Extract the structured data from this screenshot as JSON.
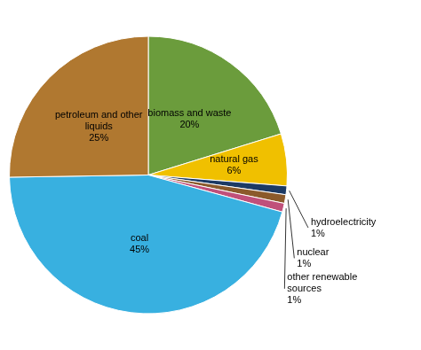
{
  "chart_data": {
    "type": "pie",
    "categories": [
      "biomass and waste",
      "natural gas",
      "hydroelectricity",
      "nuclear",
      "other renewable\nsources",
      "coal",
      "petroleum and other\nliquids"
    ],
    "values": [
      20,
      6,
      1,
      1,
      1,
      45,
      25
    ],
    "value_labels": [
      "20%",
      "6%",
      "1%",
      "1%",
      "1%",
      "45%",
      "25%"
    ],
    "colors": [
      "#6b9c3c",
      "#f0c000",
      "#1c3a64",
      "#8b5a2b",
      "#c0507a",
      "#38b0e0",
      "#b07830"
    ],
    "data_labels": true
  }
}
